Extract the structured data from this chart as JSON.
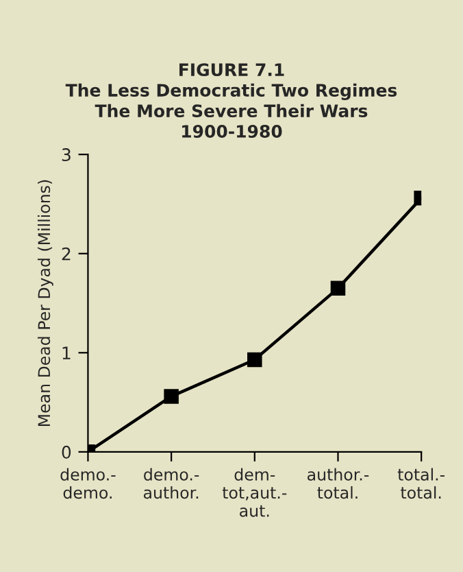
{
  "chart_data": {
    "type": "line",
    "title": "FIGURE 7.1\nThe Less Democratic Two Regimes\nThe More Severe Their Wars\n1900-1980",
    "ylabel": "Mean Dead Per Dyad (Millions)",
    "categories": [
      "demo.-\ndemo.",
      "demo.-\nauthor.",
      "dem-\ntot,aut.-\naut.",
      "author.-\ntotal.",
      "total.-\ntotal."
    ],
    "series": [
      {
        "color": "#000000",
        "values": [
          0,
          0.56,
          0.93,
          1.65,
          2.56
        ]
      }
    ],
    "ylim": [
      0,
      3
    ],
    "yticks": [
      0,
      1,
      2,
      3
    ],
    "marker": "square",
    "line_style": "solid",
    "grid": false,
    "legend": false
  }
}
